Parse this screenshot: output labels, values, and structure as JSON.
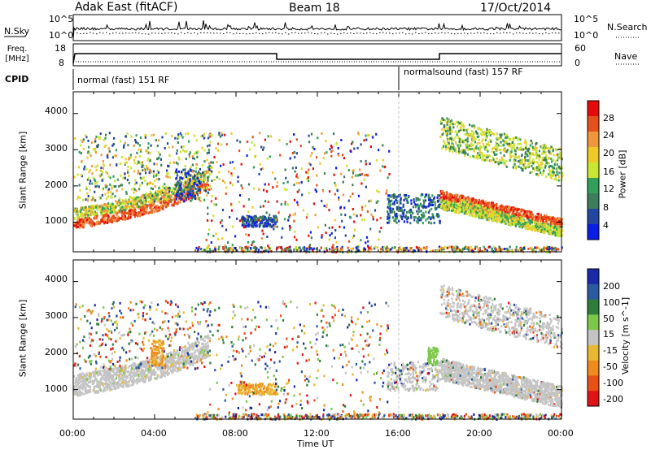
{
  "header": {
    "radar": "Adak East (fitACF)",
    "beam": "Beam 18",
    "date": "17/Oct/2014"
  },
  "sky_panel": {
    "label": "N.Sky",
    "right_label": "N.Search",
    "ticks": [
      "10^5",
      "10^0"
    ]
  },
  "freq_panel": {
    "label": "Freq. [MHz]",
    "left_ticks": [
      "18",
      "8"
    ],
    "right_ticks": [
      "60",
      "0"
    ],
    "right_label": "Nave"
  },
  "cpid_panel": {
    "label": "CPID",
    "segments": [
      {
        "start_hour": 0,
        "text": "normal (fast) 151 RF"
      },
      {
        "start_hour": 16,
        "text": "normalsound (fast) 157 RF"
      }
    ]
  },
  "chart_data": [
    {
      "type": "heatmap",
      "variable": "power",
      "ylabel": "Slant Range [km]",
      "ylim": [
        180,
        4600
      ],
      "yticks": [
        1000,
        2000,
        3000,
        4000
      ],
      "colorbar": {
        "label": "Power [dB]",
        "ticks": [
          4,
          8,
          12,
          16,
          20,
          24,
          28
        ],
        "range": [
          0,
          32
        ],
        "colors": [
          "#0a1ee6",
          "#2346a0",
          "#3c7d5a",
          "#32a05a",
          "#c8e632",
          "#f0c828",
          "#f0963c",
          "#e6501e",
          "#e60a0a"
        ]
      },
      "regions": [
        {
          "t": [
            0.0,
            6.5
          ],
          "range_km": [
            800,
            1600
          ],
          "dB": 26,
          "desc": "main ionospheric echo band"
        },
        {
          "t": [
            0.0,
            6.5
          ],
          "range_km": [
            1500,
            3500
          ],
          "dB": 18,
          "desc": "scattered upper echoes"
        },
        {
          "t": [
            8.2,
            10.0
          ],
          "range_km": [
            900,
            1200
          ],
          "dB": 8,
          "desc": "weak echo patch"
        },
        {
          "t": [
            15.5,
            18.0
          ],
          "range_km": [
            1000,
            1800
          ],
          "dB": 10,
          "desc": "weak echo patch"
        },
        {
          "t": [
            18.0,
            24.0
          ],
          "range_km": [
            1100,
            2000
          ],
          "dB": 28,
          "desc": "descending echo band"
        },
        {
          "t": [
            18.0,
            24.0
          ],
          "range_km": [
            2000,
            3500
          ],
          "dB": 16,
          "desc": "upper echo streaks"
        }
      ]
    },
    {
      "type": "heatmap",
      "variable": "velocity",
      "ylabel": "Slant Range [km]",
      "xlabel": "Time UT",
      "ylim": [
        180,
        4600
      ],
      "yticks": [
        1000,
        2000,
        3000,
        4000
      ],
      "xticks": [
        "00:00",
        "04:00",
        "08:00",
        "12:00",
        "16:00",
        "20:00",
        "00:00"
      ],
      "xlim_hours": [
        0,
        24
      ],
      "colorbar": {
        "label": "Velocity [m s^-1]",
        "ticks": [
          "200",
          "100",
          "50",
          "15",
          "-15",
          "-50",
          "-100",
          "-200"
        ],
        "colors": [
          "#1a2aa8",
          "#2a5aa0",
          "#2e7d3a",
          "#7dc84a",
          "#c4c4c4",
          "#e8b830",
          "#f08a1e",
          "#e85018",
          "#e01414"
        ]
      },
      "regions": [
        {
          "t": [
            0.0,
            6.5
          ],
          "range_km": [
            800,
            1600
          ],
          "v": 0,
          "desc": "ground scatter (grey)"
        },
        {
          "t": [
            8.0,
            10.0
          ],
          "range_km": [
            900,
            1200
          ],
          "v": -60,
          "desc": "negative velocity patch"
        },
        {
          "t": [
            15.5,
            18.0
          ],
          "range_km": [
            1000,
            1800
          ],
          "v": 0,
          "desc": "mixed ground scatter"
        },
        {
          "t": [
            18.0,
            24.0
          ],
          "range_km": [
            1100,
            2000
          ],
          "v": 0,
          "desc": "ground scatter band"
        }
      ]
    }
  ]
}
